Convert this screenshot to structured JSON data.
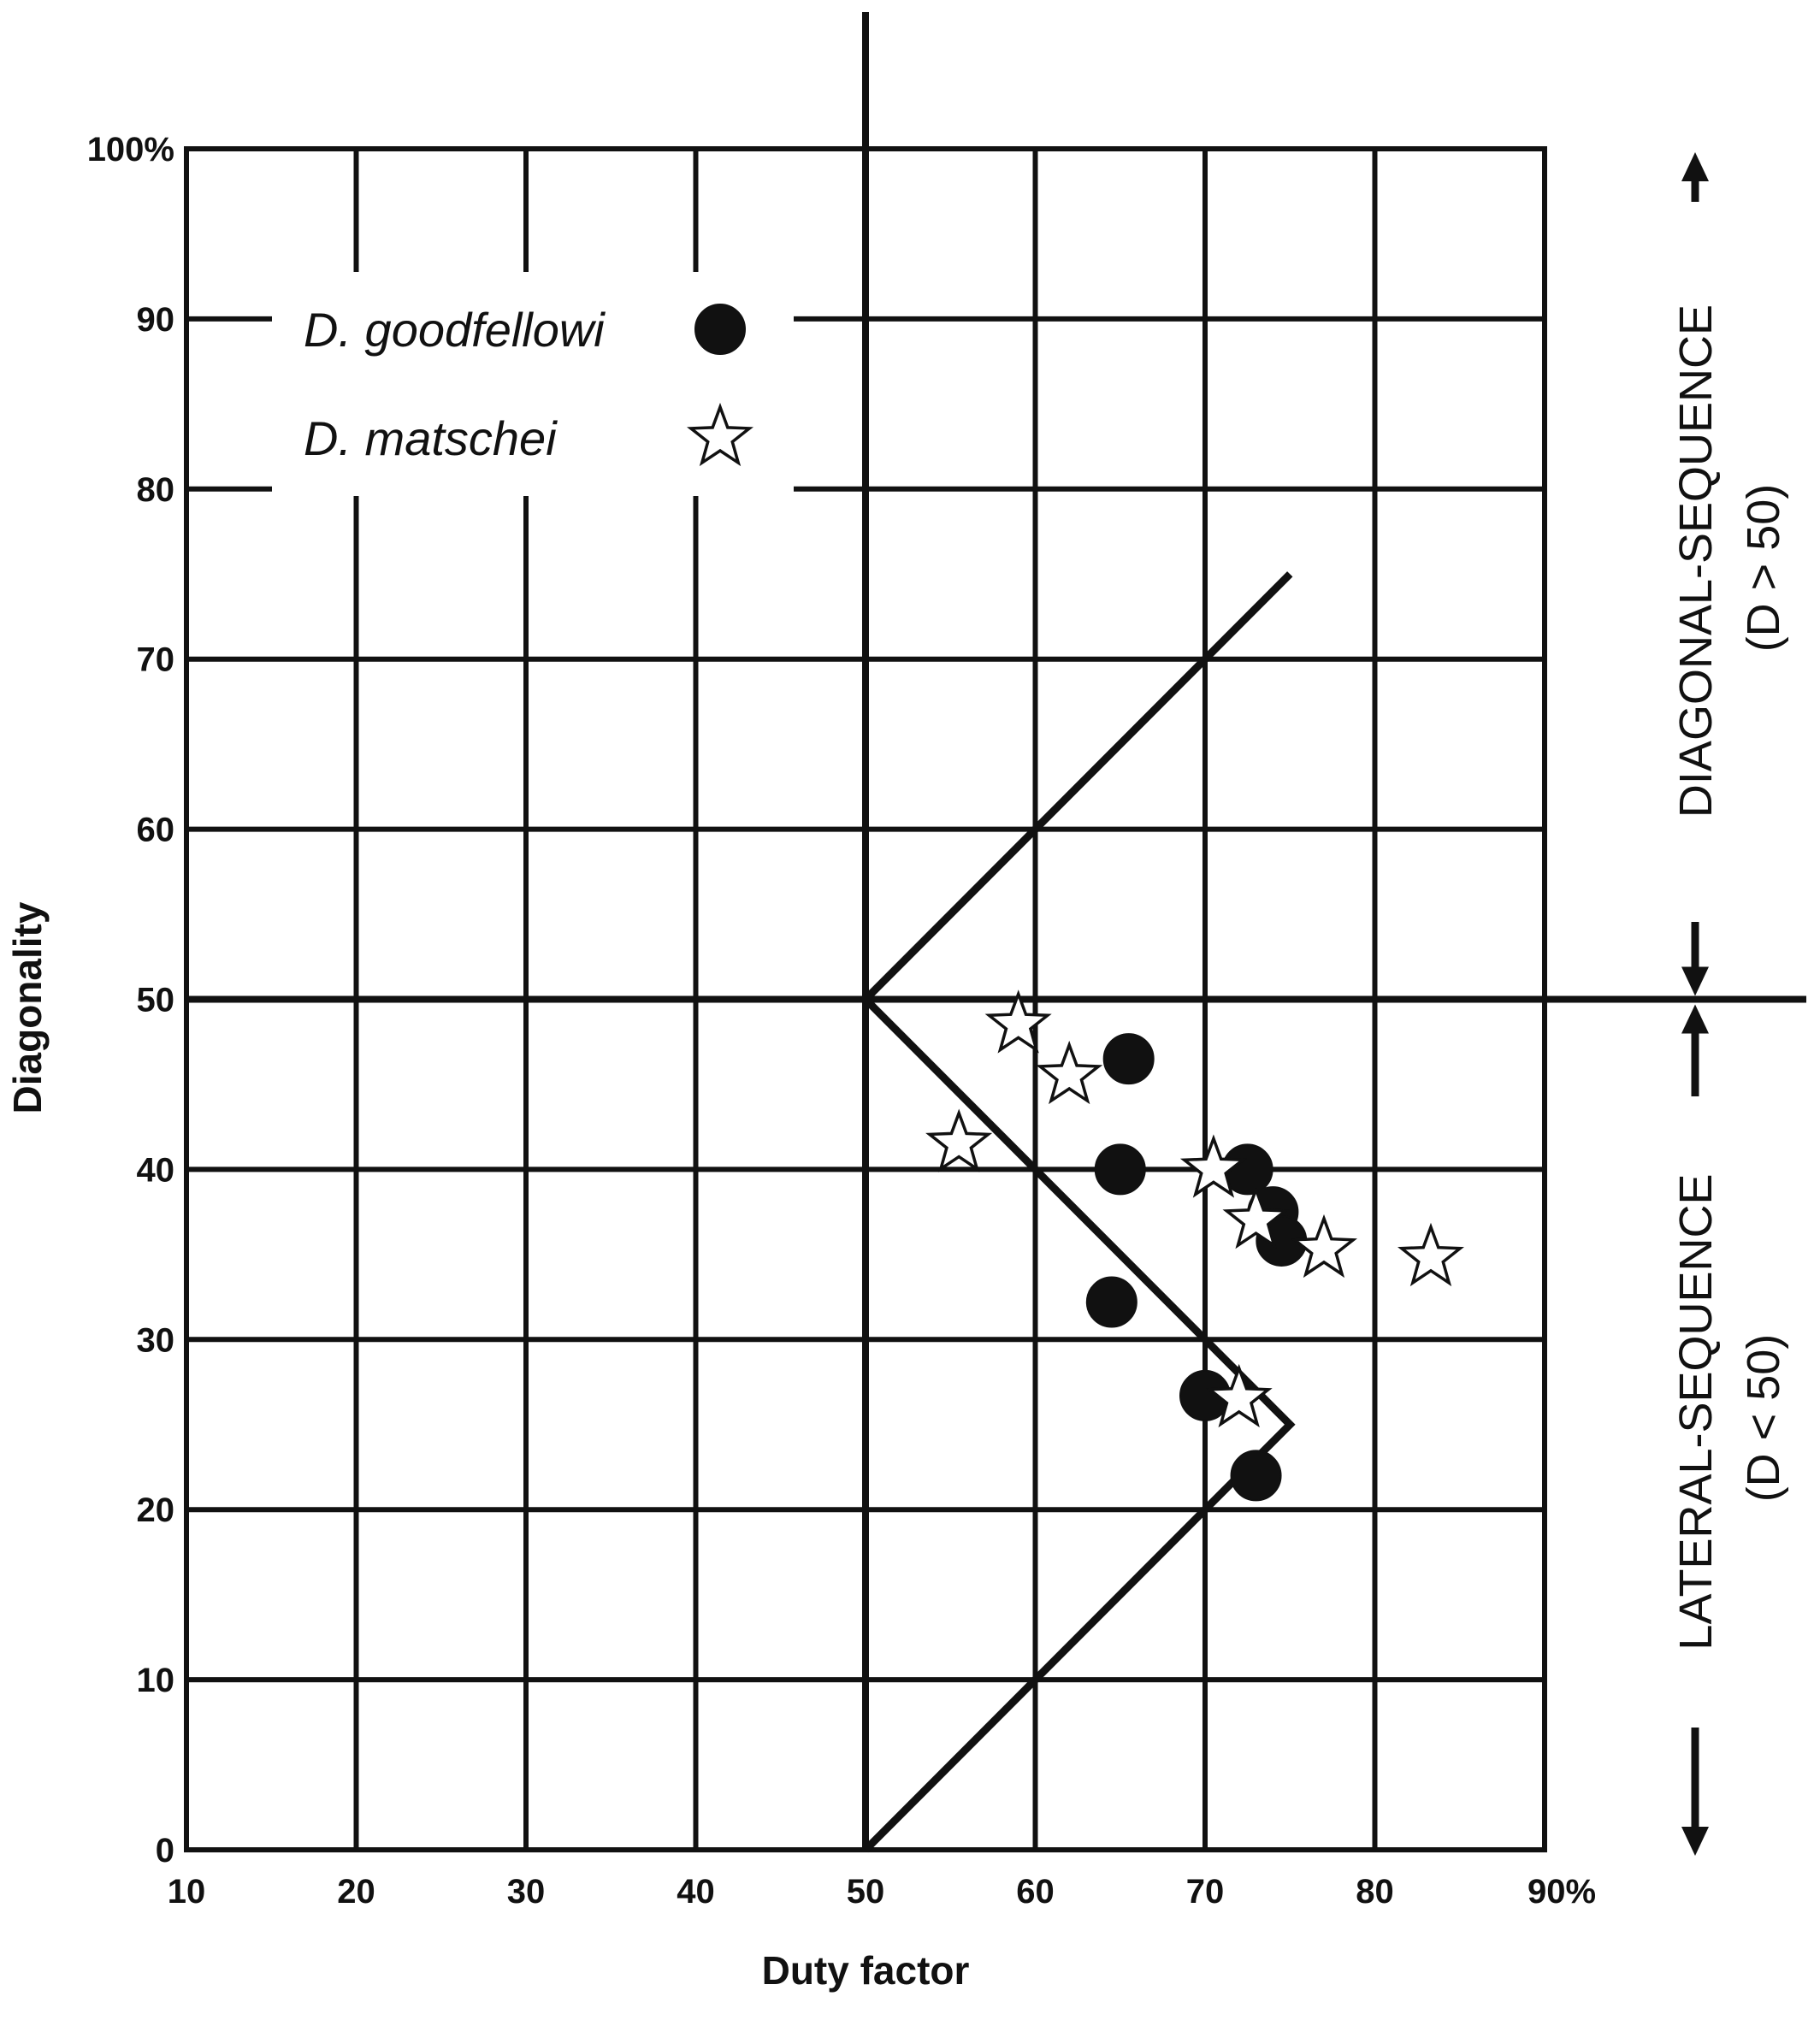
{
  "chart_data": {
    "type": "scatter",
    "title": "",
    "xlabel": "Duty factor",
    "ylabel": "Diagonality",
    "xlim": [
      10,
      90
    ],
    "ylim": [
      0,
      100
    ],
    "x_ticks": [
      10,
      20,
      30,
      40,
      50,
      60,
      70,
      80,
      90
    ],
    "y_ticks": [
      0,
      10,
      20,
      30,
      40,
      50,
      60,
      70,
      80,
      90,
      100
    ],
    "x_tick_labels": [
      "10",
      "20",
      "30",
      "40",
      "50",
      "60",
      "70",
      "80",
      "90%"
    ],
    "y_tick_labels": [
      "0",
      "10",
      "20",
      "30",
      "40",
      "50",
      "60",
      "70",
      "80",
      "90",
      "100%"
    ],
    "grid": true,
    "legend_position": "top-left",
    "series": [
      {
        "name": "D. goodfellowi",
        "marker": "filled-circle",
        "color": "#111111",
        "points": [
          {
            "x": 65.5,
            "y": 46.5
          },
          {
            "x": 65,
            "y": 40
          },
          {
            "x": 72.5,
            "y": 40
          },
          {
            "x": 74,
            "y": 37.5
          },
          {
            "x": 74.5,
            "y": 35.8
          },
          {
            "x": 64.5,
            "y": 32.2
          },
          {
            "x": 70,
            "y": 26.7
          },
          {
            "x": 73,
            "y": 22
          }
        ]
      },
      {
        "name": "D. matschei",
        "marker": "open-star",
        "color": "#111111",
        "points": [
          {
            "x": 59,
            "y": 48.5
          },
          {
            "x": 62,
            "y": 45.5
          },
          {
            "x": 55.5,
            "y": 41.5
          },
          {
            "x": 70.5,
            "y": 40
          },
          {
            "x": 73,
            "y": 37
          },
          {
            "x": 77,
            "y": 35.3
          },
          {
            "x": 83.3,
            "y": 34.8
          },
          {
            "x": 72,
            "y": 26.5
          }
        ]
      }
    ],
    "reference_lines": {
      "zigzag": [
        {
          "x": 75,
          "y": 75
        },
        {
          "x": 50,
          "y": 50
        },
        {
          "x": 75,
          "y": 25
        },
        {
          "x": 50,
          "y": 0
        }
      ],
      "vertical_at_x": 50,
      "horizontal_at_y": 50
    },
    "side_labels": {
      "upper": "DIAGONAL-SEQUENCE",
      "upper_sub": "(D > 50)",
      "lower": "LATERAL-SEQUENCE",
      "lower_sub": "(D < 50)"
    }
  }
}
